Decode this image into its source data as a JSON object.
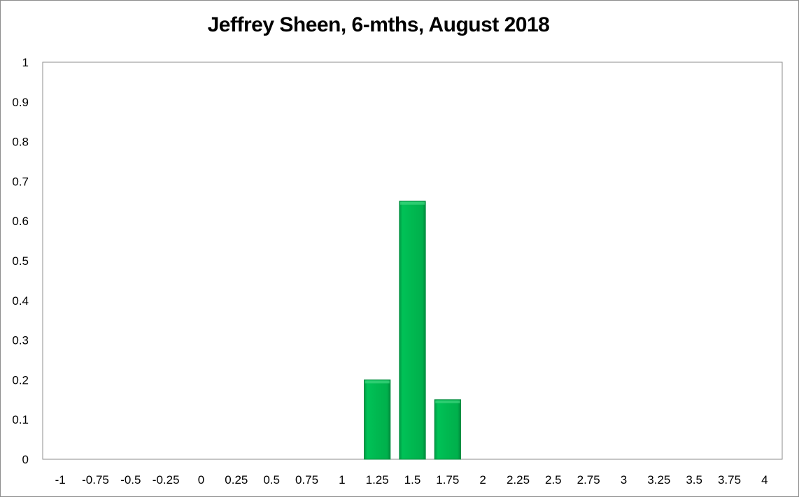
{
  "chart_data": {
    "type": "bar",
    "title": "Jeffrey Sheen, 6-mths, August 2018",
    "xlabel": "",
    "ylabel": "",
    "categories": [
      "-1",
      "-0.75",
      "-0.5",
      "-0.25",
      "0",
      "0.25",
      "0.5",
      "0.75",
      "1",
      "1.25",
      "1.5",
      "1.75",
      "2",
      "2.25",
      "2.5",
      "2.75",
      "3",
      "3.25",
      "3.5",
      "3.75",
      "4"
    ],
    "values": [
      0,
      0,
      0,
      0,
      0,
      0,
      0,
      0,
      0,
      0.2,
      0.65,
      0.15,
      0,
      0,
      0,
      0,
      0,
      0,
      0,
      0,
      0
    ],
    "ylim": [
      0,
      1
    ],
    "yticks": [
      "0",
      "0.1",
      "0.2",
      "0.3",
      "0.4",
      "0.5",
      "0.6",
      "0.7",
      "0.8",
      "0.9",
      "1"
    ],
    "grid": false,
    "legend": "none",
    "bar_color": "#00b050",
    "bar_edge_color": "#008a3c"
  }
}
